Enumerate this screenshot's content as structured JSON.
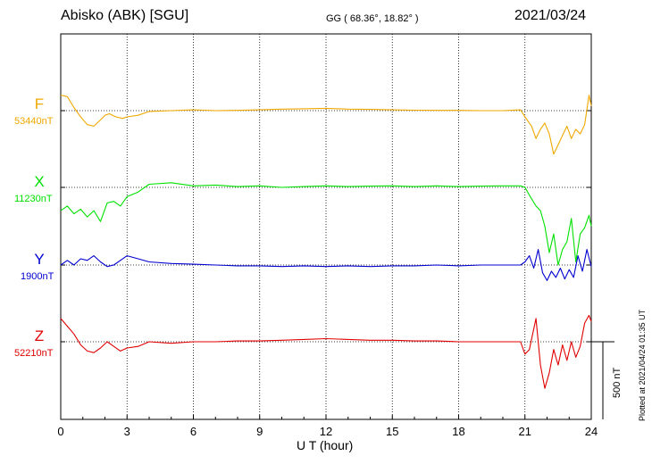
{
  "header": {
    "station": "Abisko (ABK)  [SGU]",
    "coords": "GG ( 68.36°,  18.82° )",
    "date": "2021/03/24"
  },
  "plotted_note": "Plotted at 2021/04/24 01:35 UT",
  "scale_label": "500 nT",
  "colors": {
    "F": "#f0a800",
    "X": "#00e000",
    "Y": "#0000d0",
    "Z": "#e00000"
  },
  "chart_data": {
    "type": "line",
    "xlabel": "U T (hour)",
    "xlim": [
      0,
      24
    ],
    "xticks": [
      "0",
      "3",
      "6",
      "9",
      "12",
      "15",
      "18",
      "21",
      "24"
    ],
    "scale_nT": 500,
    "series": [
      {
        "name": "F",
        "baseline_label": "53440nT",
        "x": [
          0,
          0.3,
          0.6,
          0.9,
          1.2,
          1.5,
          1.8,
          2.0,
          2.2,
          2.5,
          2.8,
          3.0,
          3.5,
          4.0,
          5,
          6,
          7,
          8,
          9,
          10,
          11,
          12,
          13,
          14,
          15,
          16,
          17,
          18,
          19,
          20,
          20.8,
          21.0,
          21.1,
          21.3,
          21.5,
          21.7,
          21.9,
          22.1,
          22.3,
          22.5,
          22.7,
          22.9,
          23.1,
          23.3,
          23.5,
          23.7,
          23.9,
          24.0
        ],
        "y": [
          100,
          90,
          20,
          -40,
          -90,
          -100,
          -60,
          -30,
          -20,
          -40,
          -50,
          -40,
          -30,
          -5,
          0,
          5,
          0,
          2,
          5,
          10,
          12,
          15,
          10,
          8,
          5,
          3,
          2,
          2,
          0,
          0,
          5,
          -40,
          -60,
          -100,
          -180,
          -120,
          -80,
          -150,
          -280,
          -220,
          -160,
          -100,
          -180,
          -120,
          -150,
          -90,
          100,
          30
        ]
      },
      {
        "name": "X",
        "baseline_label": "11230nT",
        "x": [
          0,
          0.3,
          0.6,
          0.9,
          1.2,
          1.5,
          1.8,
          2.1,
          2.4,
          2.7,
          3.0,
          3.5,
          4.0,
          5,
          6,
          7,
          8,
          9,
          10,
          11,
          12,
          13,
          14,
          15,
          16,
          17,
          18,
          19,
          20,
          20.8,
          21.0,
          21.2,
          21.5,
          21.7,
          21.9,
          22.1,
          22.3,
          22.5,
          22.7,
          22.9,
          23.1,
          23.3,
          23.5,
          23.7,
          23.9,
          24.0
        ],
        "y": [
          -150,
          -120,
          -170,
          -140,
          -190,
          -150,
          -220,
          -100,
          -90,
          -120,
          -60,
          -30,
          20,
          30,
          10,
          15,
          5,
          10,
          0,
          5,
          10,
          5,
          8,
          10,
          5,
          10,
          5,
          8,
          10,
          10,
          0,
          -50,
          -120,
          -150,
          -250,
          -420,
          -300,
          -500,
          -400,
          -350,
          -200,
          -480,
          -300,
          -260,
          -180,
          -250
        ]
      },
      {
        "name": "Y",
        "baseline_label": "1900nT",
        "x": [
          0,
          0.3,
          0.6,
          0.9,
          1.2,
          1.5,
          1.8,
          2.1,
          2.4,
          2.7,
          3.0,
          3.5,
          4.0,
          5,
          6,
          7,
          8,
          9,
          10,
          11,
          12,
          13,
          14,
          15,
          16,
          17,
          18,
          19,
          20,
          20.8,
          21.0,
          21.2,
          21.4,
          21.6,
          21.8,
          22.0,
          22.2,
          22.4,
          22.6,
          22.8,
          23.0,
          23.2,
          23.4,
          23.6,
          23.8,
          24.0
        ],
        "y": [
          0,
          30,
          0,
          40,
          30,
          60,
          20,
          -10,
          0,
          30,
          60,
          40,
          20,
          10,
          5,
          0,
          -5,
          -5,
          -10,
          -5,
          -10,
          -5,
          -10,
          -5,
          -5,
          0,
          -5,
          0,
          0,
          0,
          20,
          60,
          -20,
          100,
          -50,
          -100,
          -40,
          -80,
          -20,
          -90,
          -30,
          -80,
          60,
          -40,
          100,
          -10
        ]
      },
      {
        "name": "Z",
        "baseline_label": "52210nT",
        "x": [
          0,
          0.3,
          0.6,
          0.9,
          1.2,
          1.5,
          1.8,
          2.1,
          2.4,
          2.7,
          3.0,
          3.5,
          4.0,
          5,
          6,
          7,
          8,
          9,
          10,
          11,
          12,
          13,
          14,
          15,
          16,
          17,
          18,
          19,
          20,
          20.8,
          21.0,
          21.2,
          21.5,
          21.7,
          21.9,
          22.1,
          22.3,
          22.5,
          22.7,
          22.9,
          23.1,
          23.3,
          23.5,
          23.7,
          23.9,
          24.0
        ],
        "y": [
          150,
          100,
          50,
          -20,
          -60,
          -70,
          -40,
          0,
          -30,
          -60,
          -40,
          -30,
          0,
          -10,
          0,
          0,
          5,
          5,
          10,
          15,
          20,
          15,
          10,
          10,
          5,
          5,
          0,
          0,
          0,
          0,
          -80,
          -50,
          150,
          -150,
          -300,
          -200,
          -50,
          -150,
          -20,
          -120,
          0,
          -100,
          -30,
          120,
          170,
          130
        ]
      }
    ]
  }
}
